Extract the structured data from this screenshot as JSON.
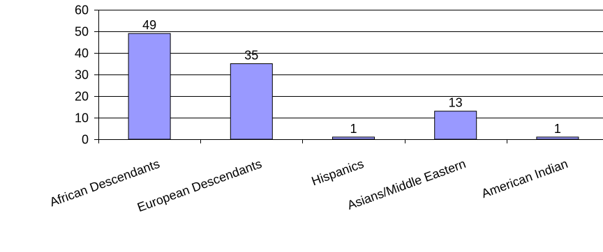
{
  "chart_data": {
    "type": "bar",
    "title": "",
    "xlabel": "",
    "ylabel": "",
    "categories": [
      "African Descendants",
      "European Descendants",
      "Hispanics",
      "Asians/Middle Eastern",
      "American Indian"
    ],
    "values": [
      49,
      35,
      1,
      13,
      1
    ],
    "data_labels": [
      "49",
      "35",
      "1",
      "13",
      "1"
    ],
    "ylim": [
      0,
      60
    ],
    "yticks": [
      0,
      10,
      20,
      30,
      40,
      50,
      60
    ],
    "ytick_labels": [
      "0",
      "10",
      "20",
      "30",
      "40",
      "50",
      "60"
    ],
    "grid": true,
    "legend": "none",
    "colors": {
      "bar_fill": "#9999FF",
      "bar_stroke": "#000000",
      "grid": "#000000",
      "axis": "#000000"
    }
  }
}
